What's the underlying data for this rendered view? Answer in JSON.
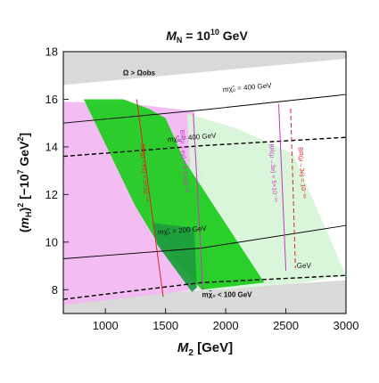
{
  "chart_data": {
    "type": "region",
    "title": "M_N = 10^10 GeV",
    "title_parts": {
      "main": "M",
      "sub": "N",
      "equals": " = 10",
      "exp": "10",
      "unit": " GeV"
    },
    "xlabel": "M_2 [GeV]",
    "xlabel_parts": {
      "main": "M",
      "sub": "2",
      "unit": " [GeV]"
    },
    "ylabel": "(m_H)^2 [-10^7 GeV^2]",
    "ylabel_parts": {
      "open": "(",
      "main": "m",
      "sub": "H",
      "close": ")",
      "sup": "2",
      "bracket": " [−10",
      "exp": "7",
      "gev": " GeV",
      "gexp": "2",
      "end": "]"
    },
    "xlim": [
      650,
      3000
    ],
    "ylim": [
      7,
      18
    ],
    "xticks": [
      1000,
      1500,
      2000,
      2500,
      3000
    ],
    "yticks": [
      8,
      10,
      12,
      14,
      16,
      18
    ],
    "colors": {
      "omega_region": "#d9d9d9",
      "green_band": "#22cc22",
      "green_dark_band": "#1e9e3e",
      "light_green_band": "#d6f5d6",
      "magenta_band": "#f2b5f2",
      "contour": "#000000",
      "mu_e_line": "#cc33cc",
      "mu_3e_line": "#dd2222"
    },
    "regions": [
      {
        "name": "Omega > Omega_obs (upper)",
        "label_main": "Ω > Ω",
        "label_sub": "obs",
        "polygon": [
          [
            650,
            18
          ],
          [
            3000,
            18
          ],
          [
            3000,
            17.7
          ],
          [
            650,
            16.6
          ]
        ]
      },
      {
        "name": "Omega > Omega_obs (lower)",
        "polygon": [
          [
            650,
            7
          ],
          [
            3000,
            7
          ],
          [
            3000,
            8.4
          ],
          [
            650,
            7.6
          ]
        ]
      },
      {
        "name": "magenta band",
        "polygon": [
          [
            650,
            15.9
          ],
          [
            1220,
            15.8
          ],
          [
            1740,
            15.5
          ],
          [
            1900,
            8.1
          ],
          [
            650,
            7.35
          ]
        ]
      },
      {
        "name": "light green band",
        "polygon": [
          [
            1680,
            15.4
          ],
          [
            2080,
            14.8
          ],
          [
            2560,
            13.7
          ],
          [
            3000,
            8.6
          ],
          [
            2640,
            8.3
          ],
          [
            1980,
            8.0
          ],
          [
            1760,
            8.0
          ]
        ]
      },
      {
        "name": "green band",
        "polygon": [
          [
            820,
            16.0
          ],
          [
            1150,
            16.0
          ],
          [
            1360,
            15.6
          ],
          [
            1500,
            15.2
          ],
          [
            1660,
            13.4
          ],
          [
            2320,
            8.3
          ],
          [
            1800,
            8.0
          ],
          [
            1430,
            10.0
          ],
          [
            1250,
            11.5
          ]
        ]
      },
      {
        "name": "dark green overlap",
        "polygon": [
          [
            1390,
            10.8
          ],
          [
            1740,
            10.6
          ],
          [
            1760,
            8.1
          ],
          [
            1720,
            7.9
          ],
          [
            1430,
            9.9
          ]
        ]
      }
    ],
    "contours": [
      {
        "name": "m_chi = 400 GeV (solid)",
        "label_main": "m",
        "label_sub": "χ̃₀",
        "label_rest": " = 400 GeV",
        "points": [
          [
            650,
            15.0
          ],
          [
            1800,
            15.55
          ],
          [
            3000,
            16.2
          ]
        ]
      },
      {
        "name": "m_chi = 400 GeV (dashed)",
        "label_main": "m",
        "label_sub": "χ̃₀",
        "label_rest": " = 400 GeV",
        "points": [
          [
            650,
            13.6
          ],
          [
            1800,
            14.05
          ],
          [
            3000,
            14.4
          ]
        ]
      },
      {
        "name": "m_chi = 200 GeV (solid)",
        "label_main": "m",
        "label_sub": "χ̃₀",
        "label_rest": " = 200 GeV",
        "points": [
          [
            650,
            9.3
          ],
          [
            1800,
            9.75
          ],
          [
            3000,
            10.7
          ]
        ]
      },
      {
        "name": "m_chi = 200 GeV (dashed)",
        "label_main": "m",
        "label_sub": "χ̃₀",
        "label_rest": " = 200 GeV",
        "points": [
          [
            650,
            7.6
          ],
          [
            1800,
            8.3
          ],
          [
            3000,
            8.6
          ]
        ]
      }
    ],
    "bound_lines": [
      {
        "name": "BR(mu->e gamma) = 5x10^-15 (red solid)",
        "style": "solid",
        "color": "#dd2222",
        "points": [
          [
            1260,
            16.0
          ],
          [
            1480,
            7.7
          ]
        ]
      },
      {
        "name": "BR(mu->e gamma) = 4.2x10^-13 (magenta solid)",
        "style": "solid",
        "color": "#cc33cc",
        "points": [
          [
            1730,
            15.4
          ],
          [
            1810,
            8.0
          ]
        ]
      },
      {
        "name": "BR(mu->3e) = 5x10^-16 (magenta solid)",
        "style": "solid",
        "color": "#cc33cc",
        "points": [
          [
            2440,
            15.8
          ],
          [
            2500,
            8.8
          ]
        ]
      },
      {
        "name": "BR(mu->3e) = 10^-16 (red dashed)",
        "style": "dashed",
        "color": "#dd2222",
        "points": [
          [
            2540,
            15.6
          ],
          [
            2580,
            8.9
          ]
        ]
      }
    ],
    "annotations": [
      {
        "text": "mχ̃₀ = 400 GeV",
        "x": 2180,
        "y": 16.4,
        "angle": -5
      },
      {
        "text": "mχ̃₀ = 400 GeV",
        "x": 1720,
        "y": 14.3,
        "angle": -5
      },
      {
        "text": "mχ̃₀ = 200 GeV",
        "x": 1640,
        "y": 10.4,
        "angle": -5
      },
      {
        "text": "mχ̃₀ < 100 GeV",
        "x": 2010,
        "y": 7.7,
        "angle": 0
      },
      {
        "text": "Ω > Ωobs",
        "x": 1280,
        "y": 17.0,
        "angle": 0
      },
      {
        "text": "BR(μ→eγ) = 5×10⁻¹⁵",
        "x": 1310,
        "y": 12.9,
        "angle": 86
      },
      {
        "text": "BR(μ→eγ) = 4.2×10⁻¹³",
        "x": 1640,
        "y": 13.4,
        "angle": 86
      },
      {
        "text": "BR(μ→3e) = 5×10⁻¹⁶",
        "x": 2380,
        "y": 12.9,
        "angle": 86
      },
      {
        "text": "BR(μ→3e) = 10⁻¹⁶",
        "x": 2620,
        "y": 12.9,
        "angle": 86
      },
      {
        "text": "GeV",
        "x": 2650,
        "y": 8.9,
        "angle": 0
      }
    ]
  }
}
